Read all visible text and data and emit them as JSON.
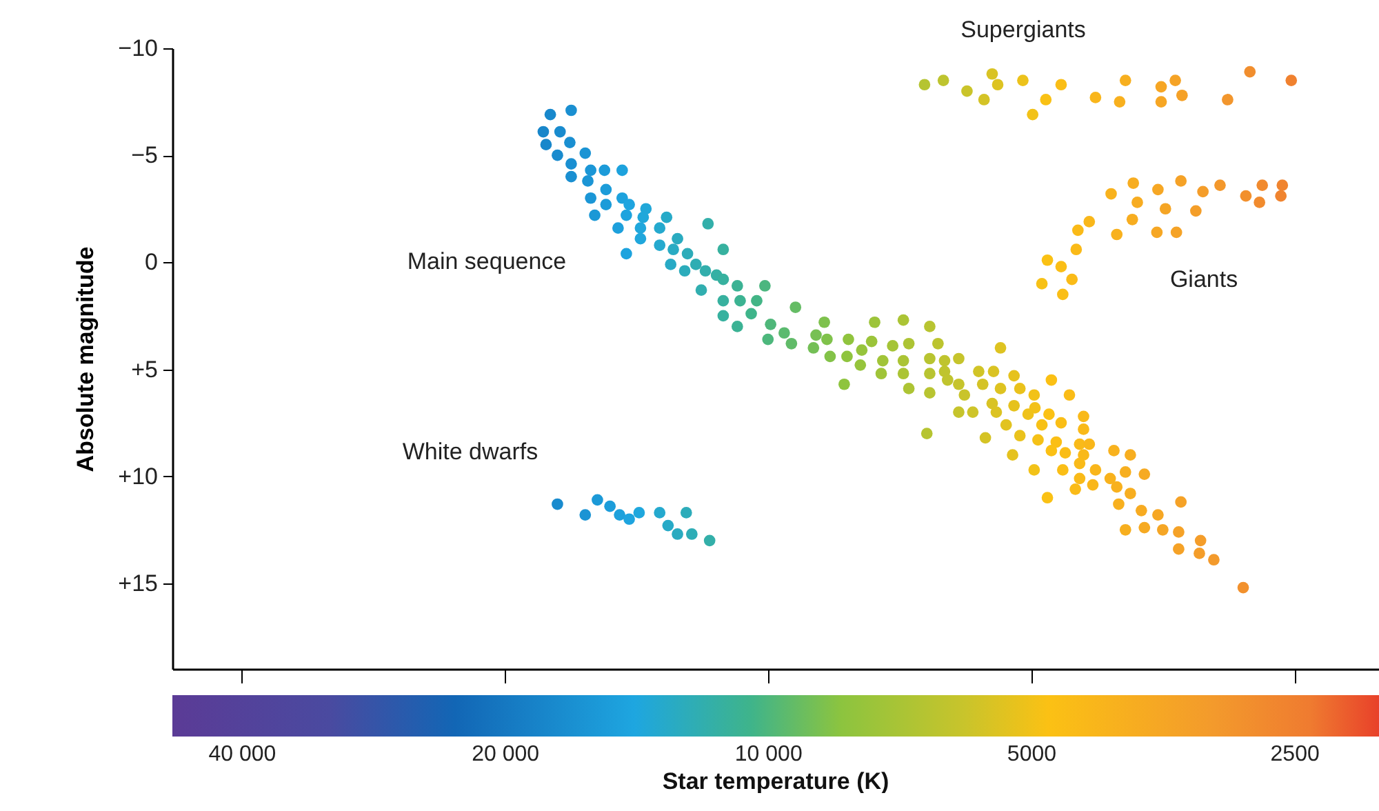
{
  "chart_data": {
    "type": "scatter",
    "xlabel": "Star temperature (K)",
    "ylabel": "Absolute magnitude",
    "log": "x",
    "xlim": [
      48000,
      2000
    ],
    "xticks": [
      {
        "value": 40000,
        "label": "40 000"
      },
      {
        "value": 20000,
        "label": "20 000"
      },
      {
        "value": 10000,
        "label": "10 000"
      },
      5000,
      2500
    ],
    "ylim": [
      19,
      -10
    ],
    "yticks": [
      {
        "value": -10,
        "label": "−10"
      },
      {
        "value": -5,
        "label": "−5"
      },
      0,
      {
        "value": 5,
        "label": "+5"
      },
      {
        "value": 10,
        "label": "+10"
      },
      {
        "value": 15,
        "label": "+15"
      }
    ],
    "grid": false,
    "legend": false,
    "marker": "circle",
    "annotations": [
      "Main sequence",
      "Supergiants",
      "Giants",
      "White dwarfs"
    ],
    "x": [
      17740,
      16790,
      18070,
      17290,
      17940,
      16850,
      17410,
      16180,
      16790,
      15950,
      15380,
      14680,
      16790,
      16070,
      15320,
      15950,
      15320,
      14680,
      14410,
      13790,
      14520,
      13890,
      13060,
      15780,
      14840,
      13990,
      13300,
      11710,
      13990,
      13300,
      12690,
      14520,
      12830,
      12360,
      11250,
      12920,
      12090,
      12450,
      11790,
      11450,
      11920,
      11250,
      10840,
      11250,
      10760,
      10300,
      10080,
      11250,
      10450,
      9930,
      10840,
      10000,
      9580,
      9300,
      9400,
      8810,
      8620,
      8560,
      8870,
      8490,
      8120,
      8090,
      7810,
      7840,
      7550,
      7610,
      7200,
      7390,
      7000,
      6900,
      7000,
      7420,
      7000,
      6530,
      6390,
      6530,
      6280,
      6050,
      6530,
      6280,
      6900,
      6530,
      6230,
      8180,
      5420,
      5740,
      5520,
      5230,
      6050,
      5830,
      6580,
      5640,
      6050,
      5680,
      5420,
      5150,
      4740,
      4960,
      4520,
      5960,
      5540,
      5230,
      4950,
      5480,
      5040,
      4770,
      4355,
      5340,
      4860,
      4620,
      4355,
      5150,
      4910,
      4680,
      4400,
      4290,
      4740,
      4570,
      4355,
      4020,
      3850,
      5250,
      4400,
      4220,
      3900,
      3710,
      4960,
      4600,
      4400,
      4250,
      4060,
      3990,
      3850,
      4450,
      4790,
      3970,
      3370,
      3740,
      3580,
      3900,
      3710,
      3535,
      3390,
      3390,
      3200,
      3210,
      3090,
      2860,
      4050,
      3820,
      3580,
      3370,
      3180,
      3040,
      2720,
      2580,
      2840,
      2740,
      2590,
      3780,
      3510,
      3240,
      3830,
      4290,
      4420,
      3990,
      3590,
      3410,
      4440,
      4790,
      4620,
      4860,
      4490,
      4600,
      6620,
      6300,
      5920,
      5540,
      5460,
      5660,
      5110,
      4620,
      4810,
      4980,
      4220,
      3960,
      3900,
      3550,
      3420,
      3550,
      3360,
      2980,
      2810,
      2520,
      17410,
      16180,
      15670,
      15160,
      14780,
      14410,
      14040,
      13300,
      12400,
      13010,
      12690,
      12220,
      11660
    ],
    "values": [
      -6.9,
      -7.1,
      -6.1,
      -6.1,
      -5.5,
      -5.6,
      -5.0,
      -5.1,
      -4.6,
      -4.3,
      -4.3,
      -4.3,
      -4.0,
      -3.8,
      -3.4,
      -3.0,
      -2.7,
      -3.0,
      -2.7,
      -2.5,
      -2.2,
      -2.1,
      -2.1,
      -2.2,
      -1.6,
      -1.6,
      -1.6,
      -1.8,
      -1.1,
      -0.8,
      -1.1,
      -0.4,
      -0.6,
      -0.4,
      -0.6,
      0.1,
      0.1,
      0.4,
      0.4,
      0.6,
      1.3,
      0.8,
      1.1,
      1.8,
      1.8,
      1.8,
      1.1,
      2.5,
      2.4,
      2.9,
      3.0,
      3.6,
      3.3,
      2.1,
      3.8,
      3.4,
      2.8,
      3.6,
      4.0,
      4.4,
      4.4,
      3.6,
      4.1,
      4.8,
      2.8,
      3.7,
      3.9,
      4.6,
      2.7,
      3.8,
      4.6,
      5.2,
      5.2,
      3.0,
      3.8,
      4.5,
      4.6,
      4.5,
      5.2,
      5.1,
      5.9,
      6.1,
      5.5,
      5.7,
      4.0,
      5.1,
      5.1,
      5.3,
      7.0,
      7.0,
      8.0,
      8.2,
      5.7,
      5.7,
      5.9,
      5.9,
      5.5,
      6.2,
      6.2,
      6.2,
      6.6,
      6.7,
      6.8,
      7.0,
      7.1,
      7.1,
      7.2,
      7.6,
      7.6,
      7.5,
      7.8,
      8.1,
      8.3,
      8.4,
      8.5,
      8.5,
      8.8,
      8.9,
      9.0,
      8.8,
      9.0,
      9.0,
      9.4,
      9.7,
      9.8,
      9.9,
      9.7,
      9.7,
      10.1,
      10.4,
      10.1,
      10.5,
      10.8,
      10.6,
      11.0,
      11.3,
      11.2,
      11.6,
      11.8,
      12.5,
      12.4,
      12.5,
      12.6,
      13.4,
      13.0,
      13.6,
      13.9,
      15.2,
      -3.2,
      -3.7,
      -3.4,
      -3.8,
      -3.3,
      -3.6,
      -3.6,
      -3.6,
      -3.1,
      -2.8,
      -3.1,
      -2.8,
      -2.5,
      -2.4,
      -2.0,
      -1.9,
      -1.5,
      -1.3,
      -1.4,
      -1.4,
      -0.6,
      -0.1,
      0.2,
      1.0,
      0.8,
      1.5,
      -8.3,
      -8.5,
      -8.0,
      -8.8,
      -8.3,
      -7.6,
      -8.5,
      -8.3,
      -7.6,
      -6.9,
      -7.7,
      -7.5,
      -8.5,
      -8.2,
      -8.5,
      -7.5,
      -7.8,
      -7.6,
      -8.9,
      -8.5,
      11.3,
      11.8,
      11.1,
      11.4,
      11.8,
      12.0,
      11.7,
      11.7,
      11.7,
      12.3,
      12.7,
      12.7,
      13.0
    ]
  }
}
